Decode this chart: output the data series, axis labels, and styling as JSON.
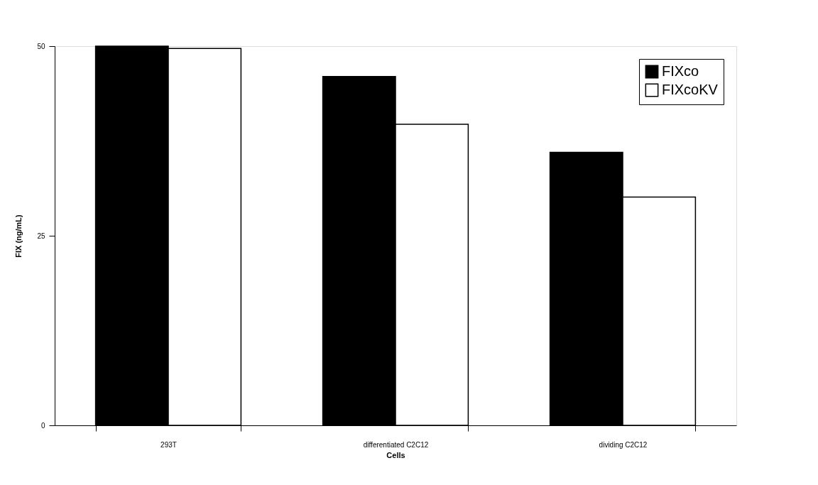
{
  "chart_data": {
    "type": "bar",
    "xlabel": "Cells",
    "ylabel": "FIX (ng/mL)",
    "categories": [
      "293T",
      "differentiated C2C12",
      "dividing C2C12"
    ],
    "series": [
      {
        "name": "FIXco",
        "color": "#000000",
        "values": [
          50,
          46,
          36
        ]
      },
      {
        "name": "FIXcoKV",
        "color": "#ffffff",
        "values": [
          49.7,
          39.7,
          30.1
        ]
      }
    ],
    "ylim": [
      0,
      50
    ],
    "yticks": [
      0,
      25,
      50
    ],
    "grid": false,
    "legend": "top right"
  }
}
